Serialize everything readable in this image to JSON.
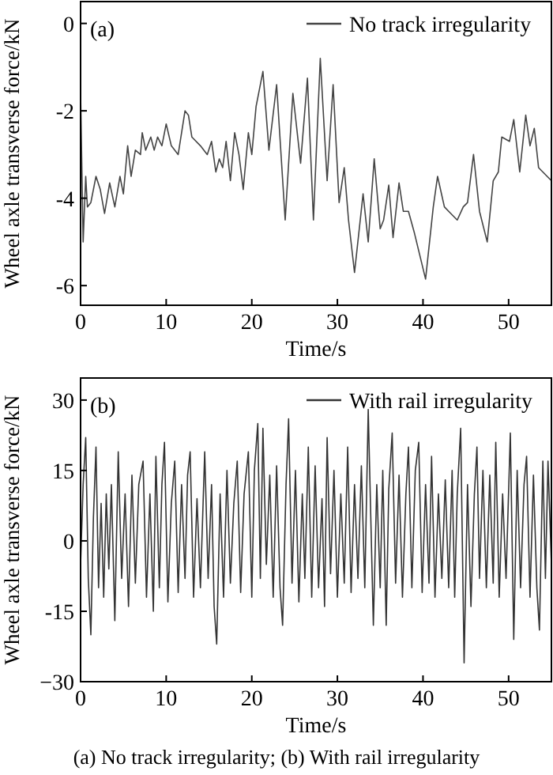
{
  "chart_data": [
    {
      "type": "line",
      "xlabel": "Time/s",
      "ylabel": "Wheel axle transverse force/kN",
      "xlim": [
        0,
        55
      ],
      "xticks": [
        0,
        10,
        20,
        30,
        40,
        50
      ],
      "ylim": [
        -6.45,
        0.5
      ],
      "yticks": [
        -6,
        -4,
        -2,
        0
      ],
      "legend": "top right",
      "grid": false,
      "annotations": [
        "(a)"
      ],
      "series": [
        {
          "name": "No track irregularity",
          "color": "#444444",
          "x": [
            0,
            0.3,
            0.6,
            0.8,
            1.2,
            1.8,
            2.3,
            2.8,
            3.4,
            4.0,
            4.6,
            5.0,
            5.5,
            5.9,
            6.4,
            7.0,
            7.2,
            7.6,
            8.2,
            8.6,
            9.0,
            9.5,
            10.0,
            10.6,
            11.4,
            12.2,
            12.6,
            13.0,
            14.0,
            14.8,
            15.3,
            15.8,
            16.2,
            16.6,
            17.0,
            17.5,
            18.0,
            18.5,
            19.0,
            19.6,
            20.0,
            20.5,
            21.3,
            22.0,
            22.9,
            23.9,
            24.8,
            25.7,
            26.5,
            27.2,
            28.0,
            28.8,
            29.5,
            30.2,
            30.8,
            31.3,
            32.0,
            33.0,
            33.6,
            34.3,
            35.0,
            35.4,
            36.0,
            36.5,
            37.2,
            37.7,
            38.3,
            39.0,
            40.3,
            41.2,
            41.7,
            42.5,
            43.0,
            44.0,
            44.7,
            45.2,
            45.9,
            46.6,
            47.5,
            48.2,
            48.8,
            49.2,
            50.1,
            50.6,
            51.3,
            52.0,
            52.5,
            53.0,
            53.5,
            55.0
          ],
          "values": [
            -1.6,
            -5.0,
            -3.5,
            -4.2,
            -4.1,
            -3.5,
            -3.8,
            -4.35,
            -3.65,
            -4.2,
            -3.5,
            -3.9,
            -2.8,
            -3.5,
            -2.9,
            -3.0,
            -2.5,
            -2.9,
            -2.6,
            -2.9,
            -2.6,
            -2.8,
            -2.3,
            -2.8,
            -3.0,
            -2.0,
            -2.1,
            -2.6,
            -2.8,
            -3.0,
            -2.7,
            -3.4,
            -3.1,
            -3.3,
            -2.7,
            -3.6,
            -2.5,
            -3.0,
            -3.8,
            -2.5,
            -3.0,
            -1.9,
            -1.1,
            -2.9,
            -1.4,
            -4.5,
            -1.6,
            -3.2,
            -1.25,
            -4.5,
            -0.8,
            -3.6,
            -1.4,
            -4.1,
            -3.3,
            -4.5,
            -5.7,
            -3.9,
            -5.0,
            -3.1,
            -4.7,
            -4.5,
            -3.7,
            -4.9,
            -3.65,
            -4.3,
            -4.3,
            -4.8,
            -5.85,
            -4.2,
            -3.5,
            -4.2,
            -4.3,
            -4.5,
            -4.2,
            -4.1,
            -3.0,
            -4.3,
            -5.0,
            -3.6,
            -3.4,
            -2.6,
            -2.7,
            -2.2,
            -3.4,
            -2.1,
            -2.8,
            -2.4,
            -3.3,
            -3.6
          ]
        }
      ]
    },
    {
      "type": "line",
      "xlabel": "Time/s",
      "ylabel": "Wheel axle transverse force/kN",
      "xlim": [
        0,
        55
      ],
      "xticks": [
        0,
        10,
        20,
        30,
        40,
        50
      ],
      "ylim": [
        -30,
        34.7
      ],
      "yticks": [
        {
          "value": -30,
          "label": "−30"
        },
        -15,
        0,
        15,
        30
      ],
      "legend": "top right",
      "grid": false,
      "annotations": [
        "(b)",
        "(a) No track irregularity; (b) With rail irregularity"
      ],
      "series": [
        {
          "name": "With rail irregularity",
          "color": "#333333",
          "x": [
            0,
            0.3,
            0.6,
            0.9,
            1.2,
            1.5,
            1.8,
            2.1,
            2.4,
            2.7,
            3.0,
            3.3,
            3.6,
            4.0,
            4.4,
            4.8,
            5.2,
            5.6,
            6.0,
            6.4,
            6.8,
            7.3,
            7.7,
            8.1,
            8.5,
            8.8,
            9.2,
            9.5,
            9.8,
            10.2,
            10.6,
            11.0,
            11.4,
            11.8,
            12.2,
            12.5,
            12.8,
            13.2,
            13.6,
            14.0,
            14.5,
            14.9,
            15.3,
            15.6,
            15.9,
            16.3,
            16.7,
            17.1,
            17.5,
            17.9,
            18.3,
            18.7,
            19.1,
            19.6,
            20.0,
            20.3,
            20.7,
            21.0,
            21.3,
            21.7,
            22.1,
            22.5,
            22.9,
            23.3,
            23.6,
            24.0,
            24.3,
            24.7,
            25.1,
            25.5,
            25.9,
            26.2,
            26.6,
            27.0,
            27.4,
            27.8,
            28.2,
            28.5,
            28.8,
            29.2,
            29.6,
            30.0,
            30.4,
            30.8,
            31.2,
            31.6,
            32.0,
            32.4,
            32.8,
            33.2,
            33.6,
            34.2,
            34.6,
            35.0,
            35.3,
            35.7,
            36.0,
            36.4,
            36.8,
            37.2,
            37.6,
            38.0,
            38.3,
            38.7,
            39.1,
            39.5,
            39.9,
            40.3,
            40.7,
            41.0,
            41.4,
            41.8,
            42.2,
            42.6,
            43.0,
            43.4,
            43.7,
            44.0,
            44.4,
            44.8,
            45.2,
            45.6,
            46.0,
            46.3,
            46.6,
            47.0,
            47.4,
            47.8,
            48.2,
            48.5,
            48.9,
            49.3,
            49.7,
            50.2,
            50.6,
            51.0,
            51.4,
            51.8,
            52.1,
            52.5,
            52.9,
            53.3,
            53.6,
            54.0,
            54.3,
            54.6,
            55.0
          ],
          "values": [
            -5,
            12,
            22,
            -8,
            -20,
            5,
            20,
            -10,
            8,
            -12,
            10,
            -6,
            12,
            -17,
            19,
            -8,
            10,
            -14,
            14,
            -9,
            12,
            17,
            -12,
            10,
            -15,
            18,
            -10,
            12,
            21,
            -13,
            8,
            17,
            -11,
            12,
            -8,
            14,
            19,
            -12,
            9,
            -10,
            19,
            -8,
            12,
            -14,
            -22,
            10,
            -12,
            15,
            -9,
            8,
            17,
            -11,
            10,
            19,
            -12,
            15,
            25,
            -8,
            24,
            -5,
            14,
            -12,
            16,
            -10,
            -18,
            12,
            26,
            -9,
            15,
            -13,
            10,
            -8,
            20,
            -12,
            16,
            -10,
            9,
            -14,
            22,
            -7,
            15,
            -12,
            10,
            -9,
            20,
            -11,
            12,
            -8,
            16,
            -10,
            28,
            -18,
            12,
            -10,
            15,
            -18,
            11,
            23,
            -9,
            14,
            -12,
            10,
            20,
            -10,
            15,
            21,
            -11,
            12,
            -9,
            18,
            -12,
            10,
            -8,
            13,
            -10,
            15,
            -12,
            10,
            24,
            -26,
            12,
            -14,
            10,
            20,
            -8,
            15,
            -10,
            14,
            -9,
            21,
            -12,
            10,
            -8,
            23,
            -21,
            15,
            -10,
            12,
            18,
            -12,
            14,
            -10,
            -19,
            17,
            -8,
            17,
            -5
          ]
        }
      ]
    }
  ]
}
